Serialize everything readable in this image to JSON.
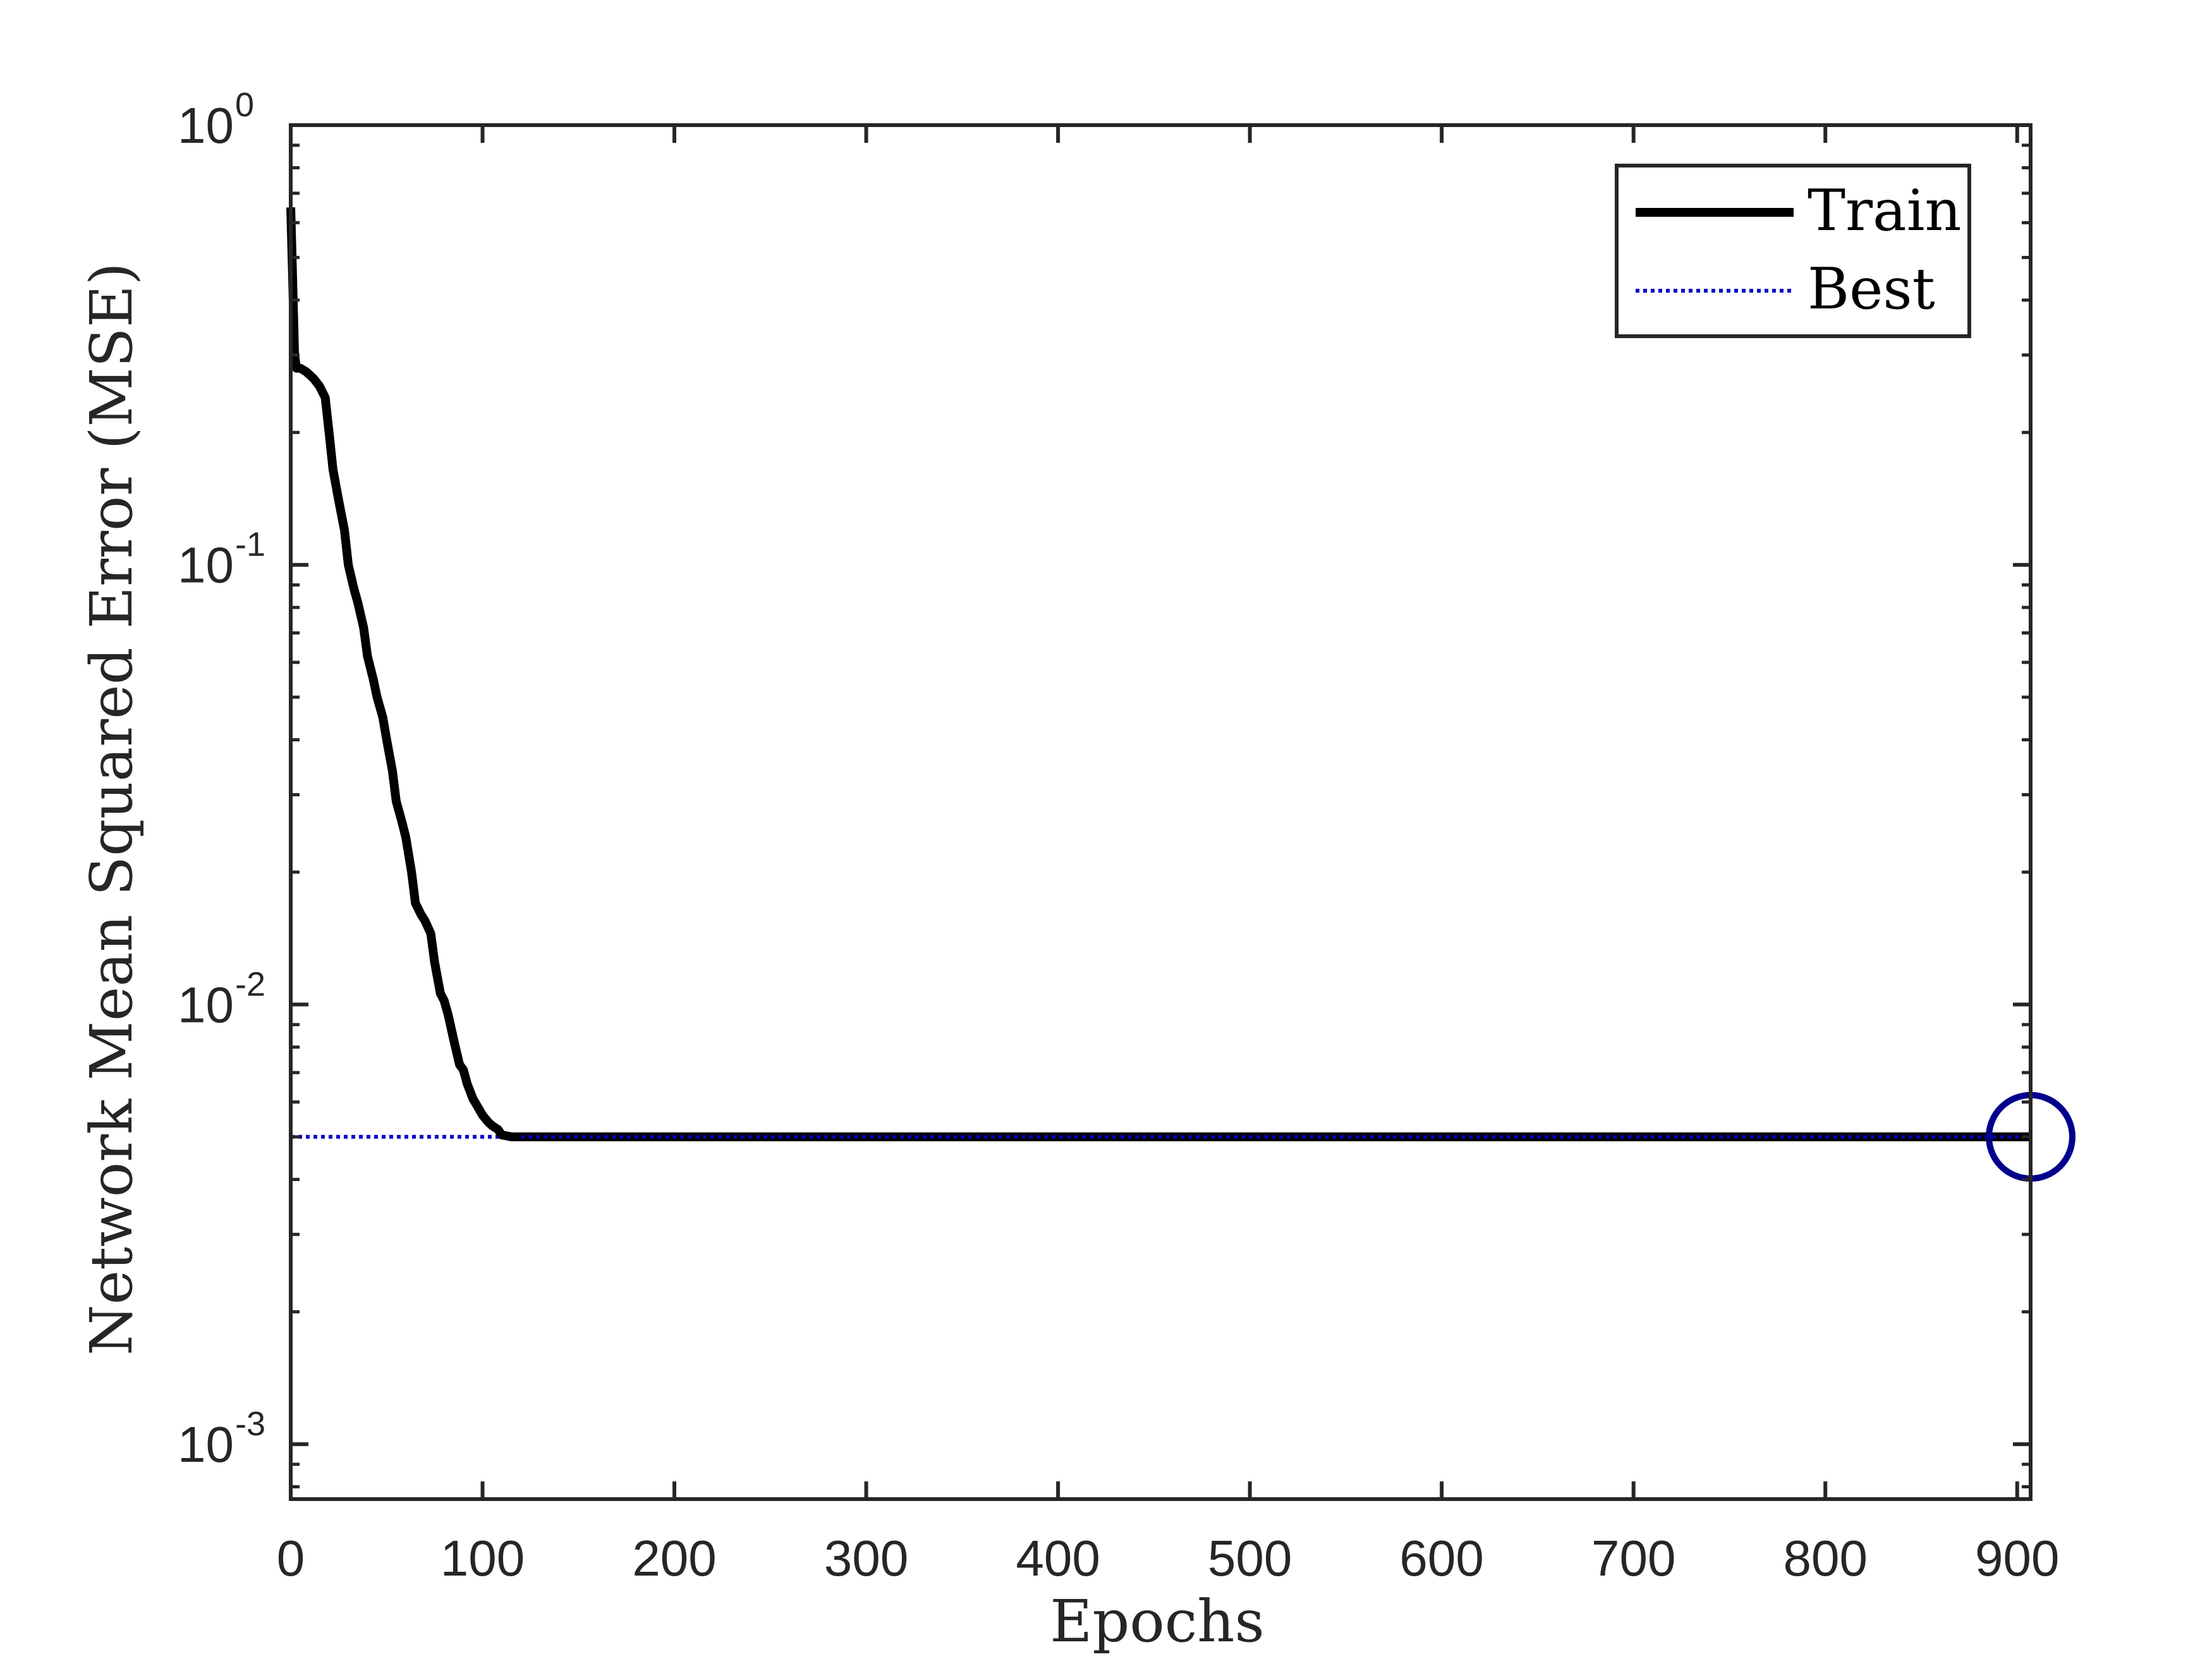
{
  "chart_data": {
    "type": "line",
    "title": "",
    "xlabel": "Epochs",
    "ylabel": "Network Mean Squared Error (MSE)",
    "xlim": [
      0,
      907
    ],
    "ylim": [
      0.00075,
      1.0
    ],
    "yscale": "log",
    "xticks": [
      0,
      100,
      200,
      300,
      400,
      500,
      600,
      700,
      800,
      900
    ],
    "yticks": [
      {
        "base": "10",
        "exponent": "-3",
        "value": 0.001
      },
      {
        "base": "10",
        "exponent": "-2",
        "value": 0.01
      },
      {
        "base": "10",
        "exponent": "-1",
        "value": 0.1
      },
      {
        "base": "10",
        "exponent": "0",
        "value": 1
      }
    ],
    "grid": false,
    "legend_position": "top-right",
    "series": [
      {
        "name": "Train",
        "color": "#000000",
        "style": "solid",
        "x": [
          0,
          1,
          2,
          3,
          5,
          8,
          10,
          12,
          15,
          18,
          20,
          22,
          25,
          28,
          30,
          33,
          35,
          38,
          40,
          43,
          45,
          48,
          50,
          53,
          55,
          58,
          60,
          63,
          65,
          68,
          70,
          73,
          75,
          78,
          80,
          82,
          85,
          88,
          90,
          92,
          95,
          97,
          100,
          103,
          105,
          108,
          110,
          115,
          120,
          130,
          150,
          200,
          300,
          400,
          500,
          600,
          700,
          800,
          900,
          907
        ],
        "y": [
          0.65,
          0.45,
          0.3,
          0.28,
          0.28,
          0.275,
          0.27,
          0.265,
          0.255,
          0.24,
          0.2,
          0.165,
          0.14,
          0.12,
          0.1,
          0.088,
          0.082,
          0.072,
          0.062,
          0.055,
          0.05,
          0.045,
          0.04,
          0.034,
          0.029,
          0.026,
          0.024,
          0.02,
          0.017,
          0.016,
          0.0155,
          0.0145,
          0.0125,
          0.0106,
          0.0102,
          0.0095,
          0.0083,
          0.0073,
          0.0071,
          0.0066,
          0.0061,
          0.0059,
          0.0056,
          0.0054,
          0.0053,
          0.0052,
          0.00505,
          0.005,
          0.005,
          0.005,
          0.005,
          0.005,
          0.005,
          0.005,
          0.005,
          0.005,
          0.005,
          0.005,
          0.005,
          0.005
        ]
      },
      {
        "name": "Best",
        "color": "#0000cd",
        "style": "dotted",
        "best_x": 907,
        "best_y": 0.005
      }
    ]
  }
}
